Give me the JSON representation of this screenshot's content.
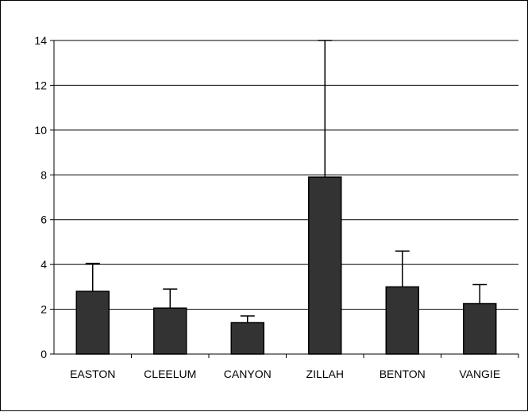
{
  "chart_data": {
    "type": "bar",
    "title": "",
    "xlabel": "",
    "ylabel": "",
    "categories": [
      "EASTON",
      "CLEELUM",
      "CANYON",
      "ZILLAH",
      "BENTON",
      "VANGIE"
    ],
    "series": [
      {
        "values": [
          2.8,
          2.05,
          1.4,
          7.9,
          3.0,
          2.25
        ],
        "error_plus": [
          1.25,
          0.85,
          0.3,
          6.1,
          1.6,
          0.85
        ]
      }
    ],
    "ylim": [
      0,
      14
    ],
    "yticks": [
      0,
      2,
      4,
      6,
      8,
      10,
      12,
      14
    ],
    "grid": true,
    "legend": "none",
    "colors": {
      "bar_fill": "#333333",
      "bar_stroke": "#000000",
      "grid": "#000000",
      "background": "#ffffff"
    }
  }
}
